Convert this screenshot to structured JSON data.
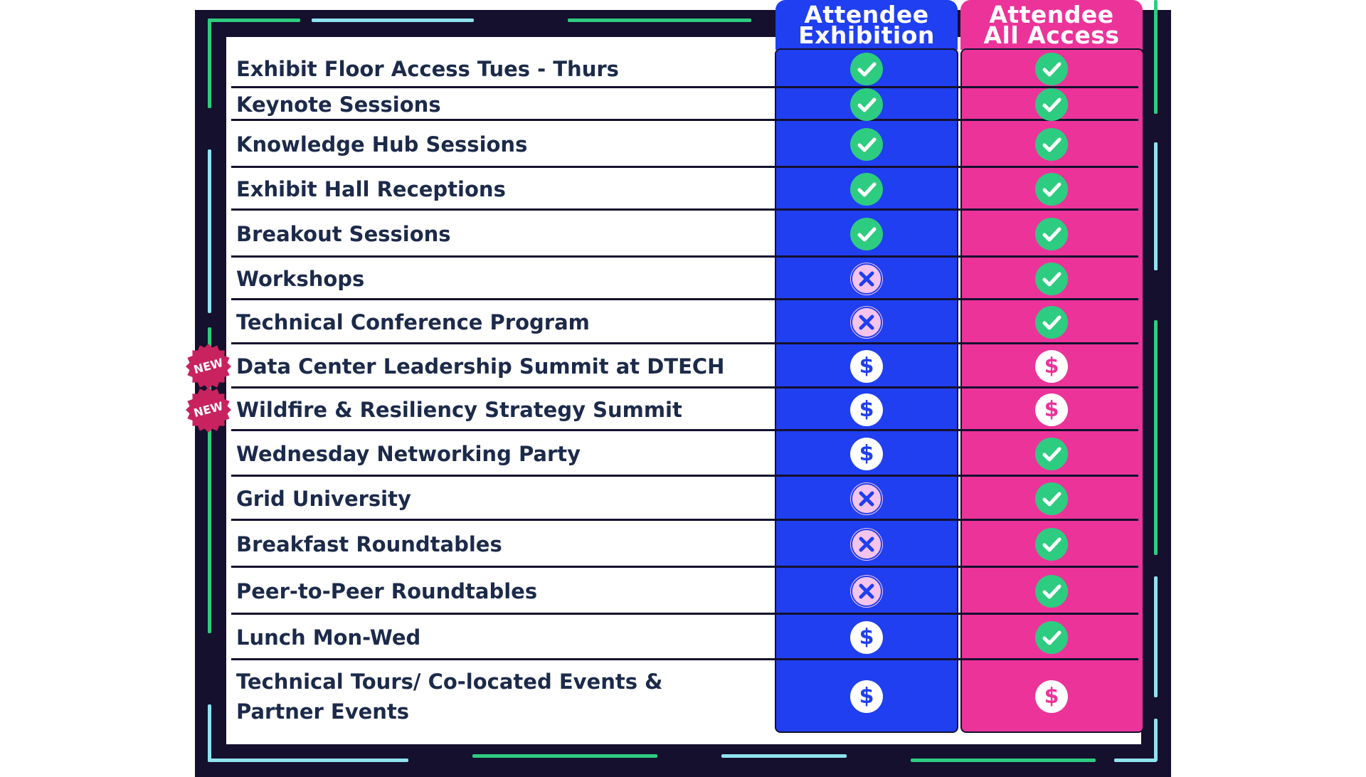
{
  "columns": [
    {
      "label": "Attendee\nExhibition",
      "color": "#1f3ff0"
    },
    {
      "label": "Attendee\nAll Access",
      "color": "#ec3399"
    }
  ],
  "badge_label": "NEW",
  "rows": [
    {
      "label": "Exhibit Floor Access Tues - Thurs",
      "exhibition": "check",
      "all_access": "check",
      "badge": false
    },
    {
      "label": "Keynote Sessions",
      "exhibition": "check",
      "all_access": "check",
      "badge": false
    },
    {
      "label": "Knowledge Hub Sessions",
      "exhibition": "check",
      "all_access": "check",
      "badge": false
    },
    {
      "label": "Exhibit Hall Receptions",
      "exhibition": "check",
      "all_access": "check",
      "badge": false
    },
    {
      "label": "Breakout Sessions",
      "exhibition": "check",
      "all_access": "check",
      "badge": false
    },
    {
      "label": "Workshops",
      "exhibition": "cross",
      "all_access": "check",
      "badge": false
    },
    {
      "label": "Technical Conference Program",
      "exhibition": "cross",
      "all_access": "check",
      "badge": false
    },
    {
      "label": "Data Center Leadership Summit at DTECH",
      "exhibition": "dollar",
      "all_access": "dollar",
      "badge": true
    },
    {
      "label": "Wildfire & Resiliency Strategy Summit",
      "exhibition": "dollar",
      "all_access": "dollar",
      "badge": true
    },
    {
      "label": "Wednesday Networking Party",
      "exhibition": "dollar",
      "all_access": "check",
      "badge": false
    },
    {
      "label": "Grid University",
      "exhibition": "cross",
      "all_access": "check",
      "badge": false
    },
    {
      "label": "Breakfast Roundtables",
      "exhibition": "cross",
      "all_access": "check",
      "badge": false
    },
    {
      "label": "Peer-to-Peer Roundtables",
      "exhibition": "cross",
      "all_access": "check",
      "badge": false
    },
    {
      "label": "Lunch Mon-Wed",
      "exhibition": "dollar",
      "all_access": "check",
      "badge": false
    },
    {
      "label": "Technical Tours/ Co-located Events &\nPartner Events",
      "exhibition": "dollar",
      "all_access": "dollar",
      "badge": false
    }
  ],
  "icons": {
    "check": "check-icon",
    "cross": "cross-icon",
    "dollar": "dollar-icon"
  },
  "colors": {
    "frame": "#14102e",
    "check": "#2ecc80",
    "cross_bg": "#f5c4ec",
    "cross_mark": "#1f3ff0",
    "badge": "#c8235f",
    "text": "#1c2a4a",
    "deco_green": "#2ecc80",
    "deco_cyan": "#8fe3f0"
  }
}
